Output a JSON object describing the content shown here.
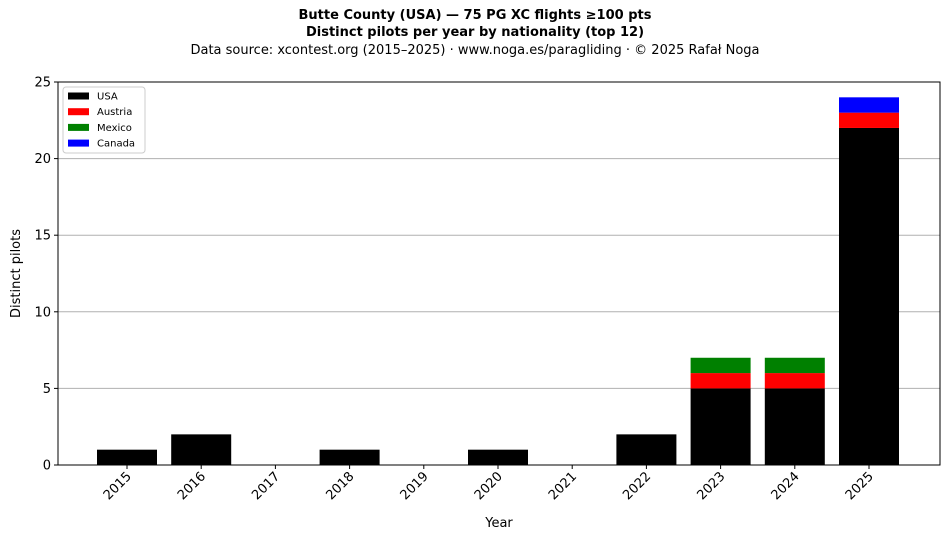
{
  "chart_data": {
    "type": "bar",
    "stacked": true,
    "title": "Butte County (USA)  —  75 PG XC flights ≥100 pts",
    "subtitle": "Distinct pilots per year by nationality (top 12)",
    "source": "Data source: xcontest.org (2015–2025)  ·  www.noga.es/paragliding  ·  © 2025 Rafał Noga",
    "xlabel": "Year",
    "ylabel": "Distinct pilots",
    "ylim": [
      0,
      25
    ],
    "yticks": [
      0,
      5,
      10,
      15,
      20,
      25
    ],
    "grid": "y",
    "legend_position": "top-left",
    "categories": [
      "2015",
      "2016",
      "2017",
      "2018",
      "2019",
      "2020",
      "2021",
      "2022",
      "2023",
      "2024",
      "2025"
    ],
    "series": [
      {
        "name": "USA",
        "color": "#000000",
        "values": [
          1,
          2,
          0,
          1,
          0,
          1,
          0,
          2,
          5,
          5,
          22
        ]
      },
      {
        "name": "Austria",
        "color": "#ff0000",
        "values": [
          0,
          0,
          0,
          0,
          0,
          0,
          0,
          0,
          1,
          1,
          1
        ]
      },
      {
        "name": "Mexico",
        "color": "#008000",
        "values": [
          0,
          0,
          0,
          0,
          0,
          0,
          0,
          0,
          1,
          1,
          0
        ]
      },
      {
        "name": "Canada",
        "color": "#0000ff",
        "values": [
          0,
          0,
          0,
          0,
          0,
          0,
          0,
          0,
          0,
          0,
          1
        ]
      }
    ]
  }
}
